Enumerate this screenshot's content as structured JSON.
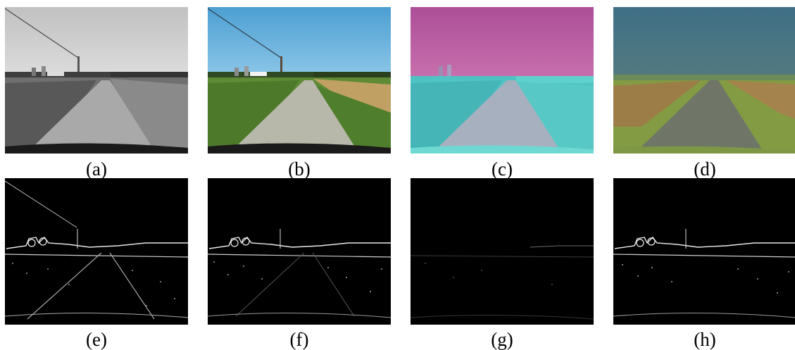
{
  "figure": {
    "panels": [
      {
        "label": "(a)",
        "representation": "grayscale"
      },
      {
        "label": "(b)",
        "representation": "rgb-color"
      },
      {
        "label": "(c)",
        "representation": "color-space-magenta-cyan"
      },
      {
        "label": "(d)",
        "representation": "color-space-teal-olive"
      },
      {
        "label": "(e)",
        "representation": "edge-map"
      },
      {
        "label": "(f)",
        "representation": "edge-map"
      },
      {
        "label": "(g)",
        "representation": "edge-map-faint"
      },
      {
        "label": "(h)",
        "representation": "edge-map"
      }
    ]
  },
  "colors": {
    "gray_sky": "#c9c9c9",
    "gray_field": "#6f6f6f",
    "gray_road": "#a9a9a9",
    "rgb_sky": "#56a7d6",
    "rgb_field_left": "#5f8a36",
    "rgb_field_right": "#c0a163",
    "rgb_road": "#b8b8aa",
    "c_sky": "#b7569e",
    "c_ground": "#4fc3c3",
    "c_road": "#a7b0bf",
    "d_sky": "#427184",
    "d_ground": "#839b43",
    "d_field_right": "#a4844c",
    "d_road": "#6f7668",
    "edge_bg": "#000000",
    "edge_line": "#dcdcdc"
  }
}
